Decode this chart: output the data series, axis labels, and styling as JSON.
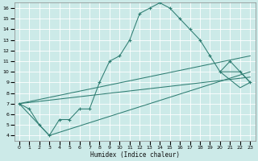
{
  "xlabel": "Humidex (Indice chaleur)",
  "bg_color": "#cceae8",
  "grid_color": "#ffffff",
  "line_color": "#2e7d72",
  "xlim": [
    -0.5,
    23.5
  ],
  "ylim": [
    3.5,
    16.5
  ],
  "xticks": [
    0,
    1,
    2,
    3,
    4,
    5,
    6,
    7,
    8,
    9,
    10,
    11,
    12,
    13,
    14,
    15,
    16,
    17,
    18,
    19,
    20,
    21,
    22,
    23
  ],
  "yticks": [
    4,
    5,
    6,
    7,
    8,
    9,
    10,
    11,
    12,
    13,
    14,
    15,
    16
  ],
  "main_x": [
    0,
    1,
    2,
    3,
    4,
    5,
    6,
    7,
    8,
    9,
    10,
    11,
    12,
    13,
    14,
    15,
    16,
    17,
    18,
    19,
    20,
    21,
    22,
    23
  ],
  "main_y": [
    7.0,
    6.5,
    5.0,
    4.0,
    5.5,
    5.5,
    6.5,
    6.5,
    9.0,
    11.0,
    11.5,
    13.0,
    15.5,
    16.0,
    16.5,
    16.0,
    15.0,
    14.0,
    13.0,
    11.5,
    10.0,
    11.0,
    10.0,
    9.0
  ],
  "line1_x": [
    0,
    23
  ],
  "line1_y": [
    7.0,
    11.5
  ],
  "line2_x": [
    0,
    2,
    3,
    23
  ],
  "line2_y": [
    7.0,
    5.0,
    4.0,
    10.0
  ],
  "line3_x": [
    0,
    23
  ],
  "line3_y": [
    7.0,
    9.5
  ],
  "tri_x": [
    20,
    22,
    23,
    22,
    20
  ],
  "tri_y": [
    10.0,
    10.0,
    9.0,
    8.5,
    10.0
  ]
}
